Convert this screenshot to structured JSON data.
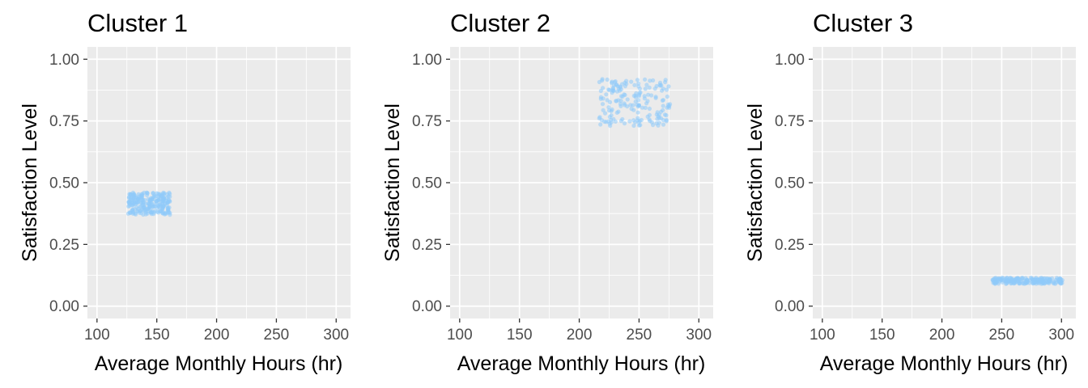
{
  "chart_data": [
    {
      "type": "scatter",
      "title": "Cluster 1",
      "xlabel": "Average Monthly Hours (hr)",
      "ylabel": "Satisfaction Level",
      "xlim": [
        92,
        312
      ],
      "ylim": [
        -0.05,
        1.05
      ],
      "xticks": [
        100,
        150,
        200,
        250,
        300
      ],
      "yticks": [
        0.0,
        0.25,
        0.5,
        0.75,
        1.0
      ],
      "xtick_labels": [
        "100",
        "150",
        "200",
        "250",
        "300"
      ],
      "ytick_labels": [
        "0.00",
        "0.25",
        "0.50",
        "0.75",
        "1.00"
      ],
      "point_color": "#90CAF9",
      "grid": true,
      "series": [
        {
          "x_range": [
            126,
            161
          ],
          "y_range": [
            0.37,
            0.46
          ],
          "n": 240
        }
      ]
    },
    {
      "type": "scatter",
      "title": "Cluster 2",
      "xlabel": "Average Monthly Hours (hr)",
      "ylabel": "Satisfaction Level",
      "xlim": [
        92,
        312
      ],
      "ylim": [
        -0.05,
        1.05
      ],
      "xticks": [
        100,
        150,
        200,
        250,
        300
      ],
      "yticks": [
        0.0,
        0.25,
        0.5,
        0.75,
        1.0
      ],
      "xtick_labels": [
        "100",
        "150",
        "200",
        "250",
        "300"
      ],
      "ytick_labels": [
        "0.00",
        "0.25",
        "0.50",
        "0.75",
        "1.00"
      ],
      "point_color": "#90CAF9",
      "grid": true,
      "series": [
        {
          "x_range": [
            216,
            276
          ],
          "y_range": [
            0.73,
            0.92
          ],
          "n": 180
        }
      ]
    },
    {
      "type": "scatter",
      "title": "Cluster 3",
      "xlabel": "Average Monthly Hours (hr)",
      "ylabel": "Satisfaction Level",
      "xlim": [
        92,
        312
      ],
      "ylim": [
        -0.05,
        1.05
      ],
      "xticks": [
        100,
        150,
        200,
        250,
        300
      ],
      "yticks": [
        0.0,
        0.25,
        0.5,
        0.75,
        1.0
      ],
      "xtick_labels": [
        "100",
        "150",
        "200",
        "250",
        "300"
      ],
      "ytick_labels": [
        "0.00",
        "0.25",
        "0.50",
        "0.75",
        "1.00"
      ],
      "point_color": "#90CAF9",
      "grid": true,
      "series": [
        {
          "x_range": [
            242,
            301
          ],
          "y_range": [
            0.09,
            0.115
          ],
          "n": 200
        }
      ]
    }
  ]
}
